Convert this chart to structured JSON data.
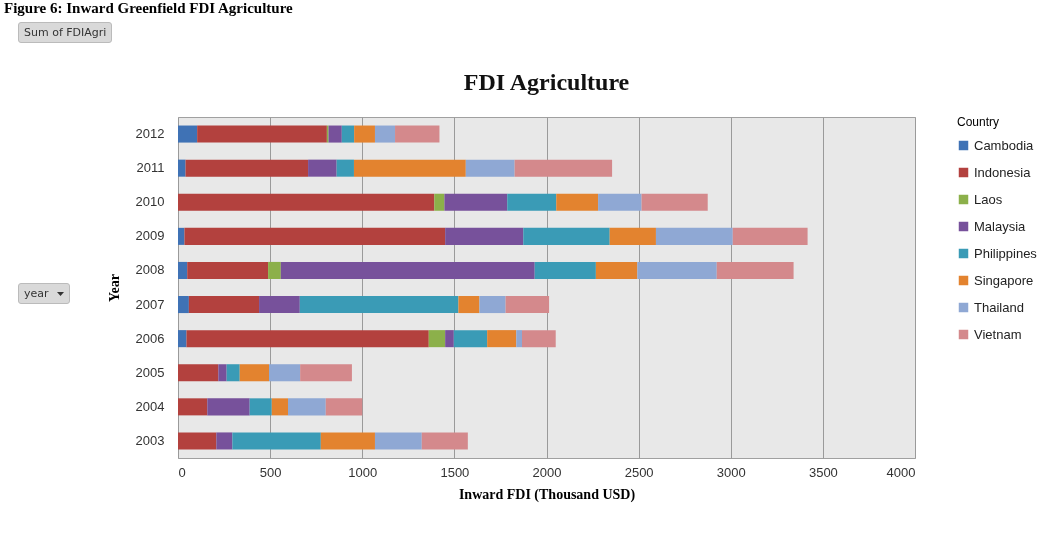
{
  "chart_data": {
    "type": "bar",
    "orientation": "horizontal",
    "stacked": true,
    "title": "FDI Agriculture",
    "xlabel": "Inward FDI (Thousand USD)",
    "ylabel": "Year",
    "legend_title": "Country",
    "legend": "right",
    "grid": "x",
    "annotations": [
      "Figure 6: Inward Greenfield FDI Agriculture",
      "Sum of FDIAgri",
      "year"
    ],
    "categories": [
      "2012",
      "2011",
      "2010",
      "2009",
      "2008",
      "2007",
      "2006",
      "2005",
      "2004",
      "2003"
    ],
    "xlim": [
      0,
      4000
    ],
    "xticks": [
      0,
      500,
      1000,
      1500,
      2000,
      2500,
      3000,
      3500,
      4000
    ],
    "series": [
      {
        "name": "Cambodia",
        "color": "#3f72b5",
        "values": [
          104,
          41,
          0,
          35,
          50,
          59,
          46,
          0,
          0,
          0
        ]
      },
      {
        "name": "Indonesia",
        "color": "#b3413e",
        "values": [
          704,
          665,
          1391,
          1415,
          439,
          381,
          1315,
          219,
          159,
          208
        ]
      },
      {
        "name": "Laos",
        "color": "#8cb04a",
        "values": [
          9,
          0,
          55,
          0,
          69,
          0,
          89,
          0,
          0,
          0
        ]
      },
      {
        "name": "Malaysia",
        "color": "#77519b",
        "values": [
          72,
          155,
          341,
          424,
          1378,
          221,
          47,
          45,
          230,
          87
        ]
      },
      {
        "name": "Philippines",
        "color": "#3a9bb6",
        "values": [
          67,
          94,
          266,
          469,
          332,
          861,
          181,
          71,
          120,
          480
        ]
      },
      {
        "name": "Singapore",
        "color": "#e3832f",
        "values": [
          113,
          607,
          227,
          251,
          225,
          114,
          158,
          159,
          88,
          294
        ]
      },
      {
        "name": "Thailand",
        "color": "#8fa8d4",
        "values": [
          109,
          265,
          236,
          417,
          431,
          142,
          31,
          169,
          205,
          254
        ]
      },
      {
        "name": "Vietnam",
        "color": "#d4898c",
        "values": [
          241,
          529,
          359,
          406,
          417,
          236,
          183,
          281,
          198,
          250
        ]
      }
    ]
  }
}
